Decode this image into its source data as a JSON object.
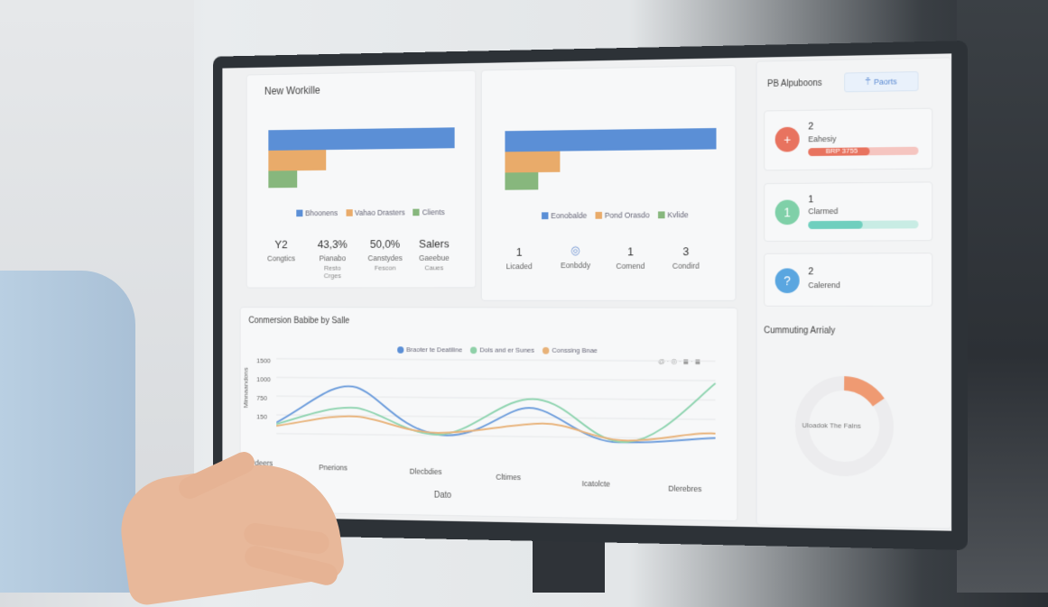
{
  "card1": {
    "title": "New Workille",
    "legend": [
      "Bhoonens",
      "Vahao Drasters",
      "Clients"
    ],
    "stats": [
      {
        "value": "Y2",
        "label": "Congtics",
        "sub": ""
      },
      {
        "value": "43,3%",
        "label": "Pianabo",
        "sub": "Resto\nCrges"
      },
      {
        "value": "50,0%",
        "label": "Canstydes",
        "sub": "Fescon"
      },
      {
        "value": "Salers",
        "label": "Gaeebue",
        "sub": "Caues"
      }
    ]
  },
  "card2": {
    "legend": [
      "Eonobalde",
      "Pond Orasdo",
      "Kvlide"
    ],
    "stats": [
      {
        "value": "1",
        "label": "Licaded"
      },
      {
        "value": "",
        "label": "Eonbddy"
      },
      {
        "value": "1",
        "label": "Comend"
      },
      {
        "value": "3",
        "label": "Condird"
      }
    ]
  },
  "sidebar": {
    "title": "PB Alpuboons",
    "button": "Paorts",
    "items": [
      {
        "count": "2",
        "label": "Eahesiy",
        "bar_label": "BRP 3755",
        "icon": "+",
        "color": "#e8735f",
        "progress": 0.55
      },
      {
        "count": "1",
        "label": "Clarmed",
        "icon": "1",
        "color": "#7fd0a8",
        "progress": 0.45
      },
      {
        "count": "2",
        "label": "Calerend",
        "icon": "?",
        "color": "#5aa6e0",
        "progress": 0
      }
    ],
    "section_title": "Cummuting Arrialy",
    "donut_label": "Uloadok The Falns",
    "donut_value": 0.12
  },
  "linechart": {
    "title": "Conmersion Babibe by Salle",
    "legend": [
      "Braoter te Deatiline",
      "Dols and er Sunes",
      "Conssing Bnae"
    ],
    "ylabel": "Minnaandons",
    "yticks": [
      "1500",
      "1000",
      "750",
      "150"
    ],
    "xticks": [
      "Pdeers",
      "Pnerions",
      "Dlecbdies",
      "Cltimes",
      "Icatolcte",
      "Dlerebres"
    ],
    "xlabel": "Dato",
    "controls": "@ · ◎ · ◼ · ◼"
  }
}
